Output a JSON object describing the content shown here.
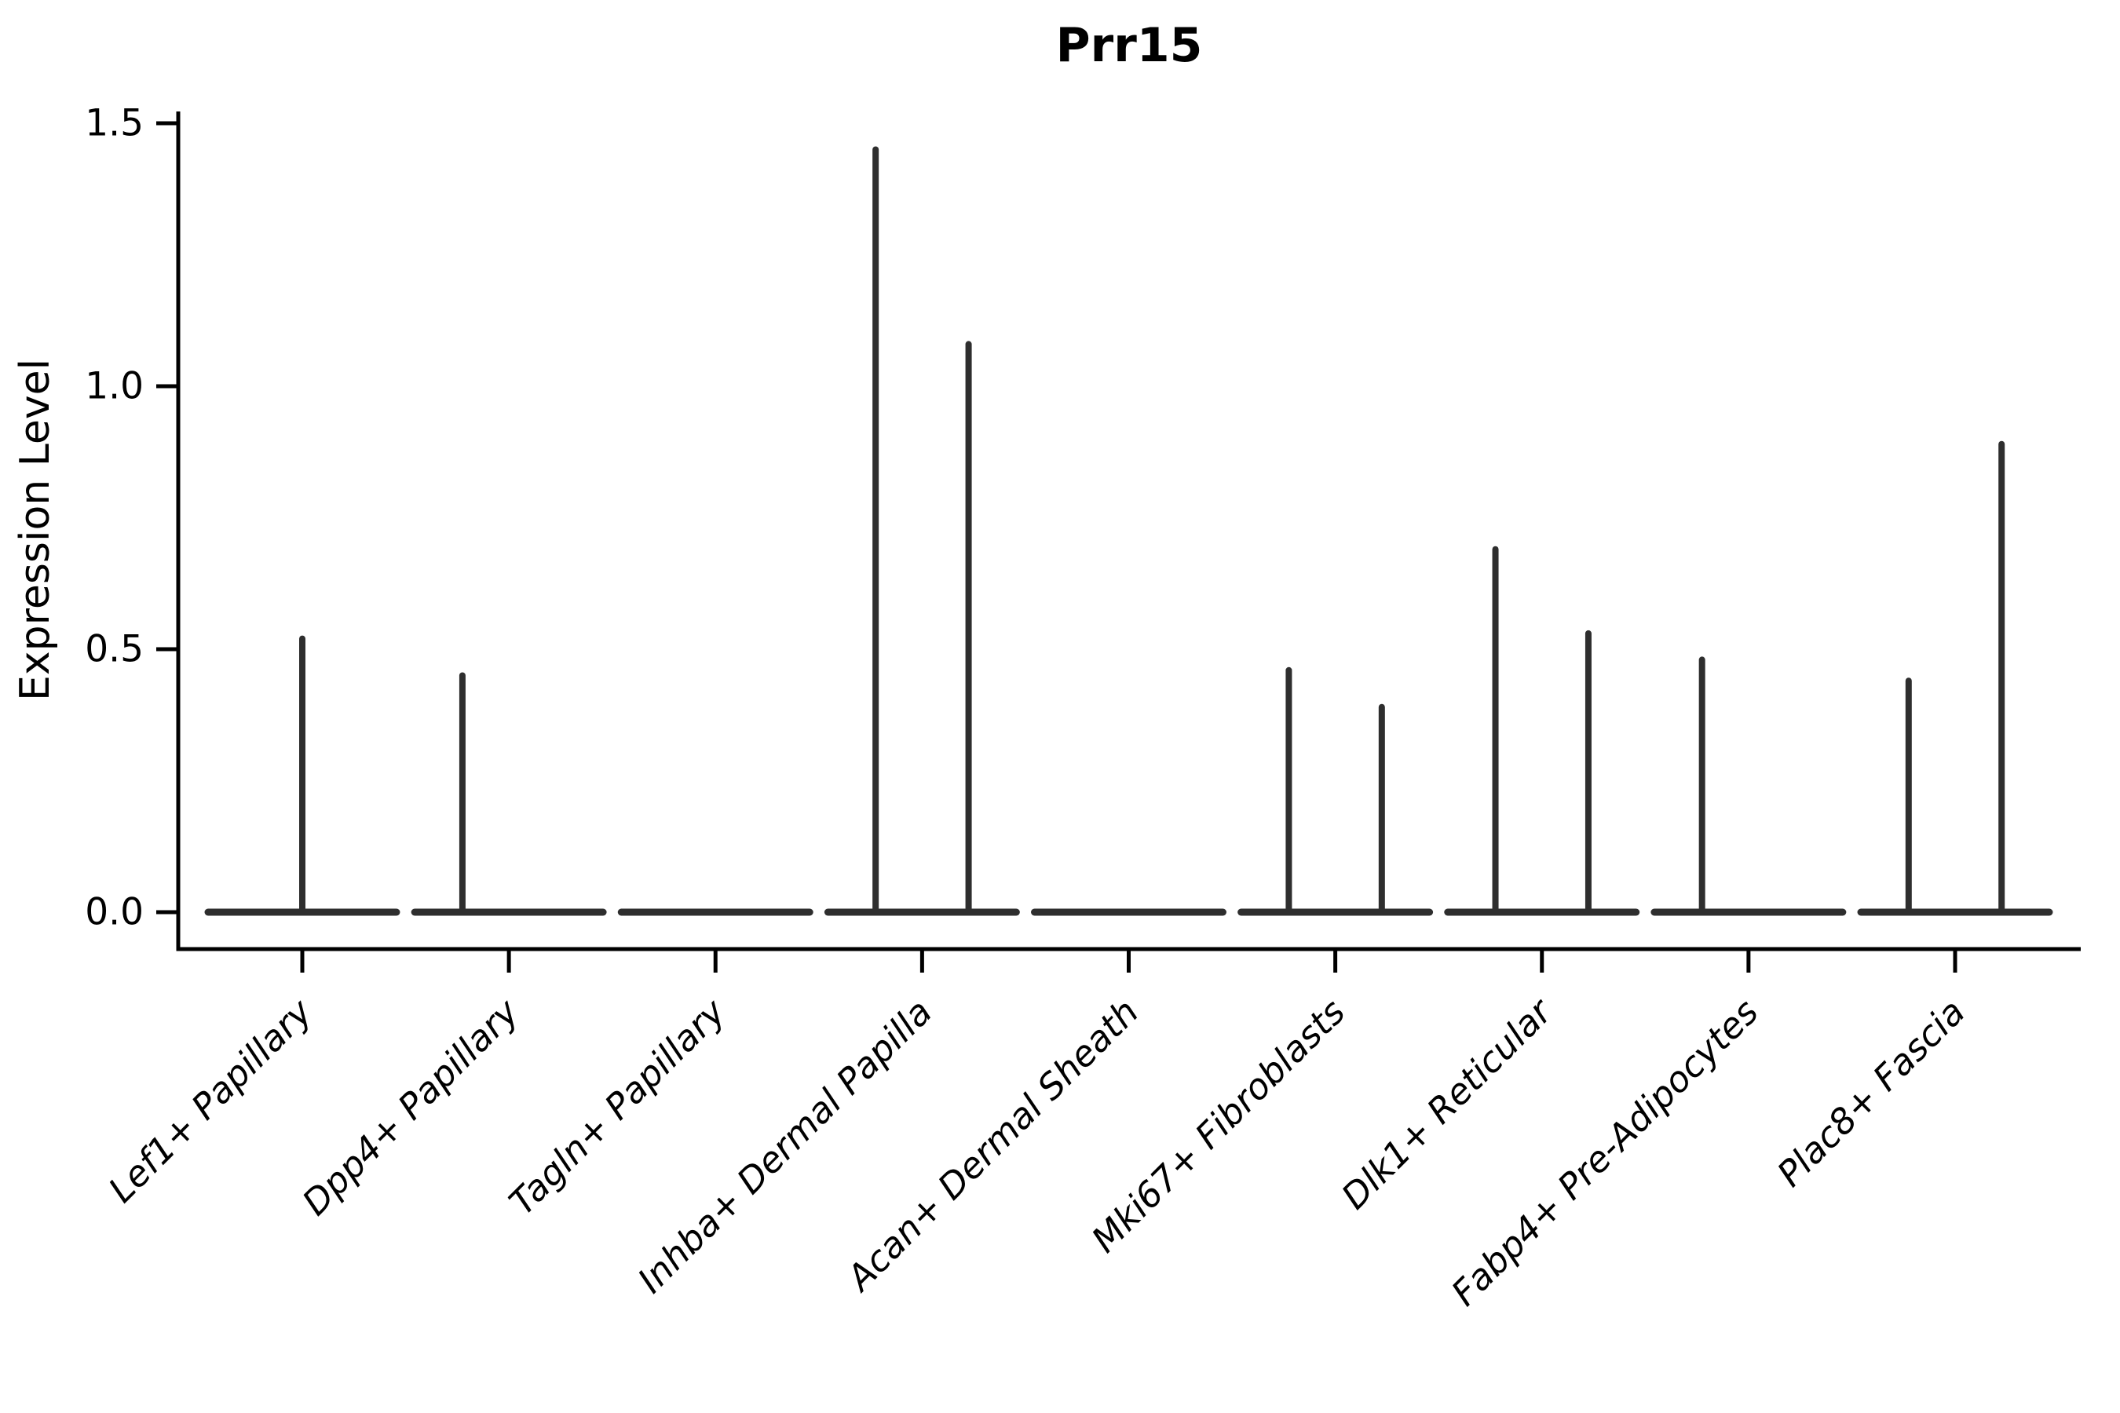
{
  "page": {
    "background": "#ffffff"
  },
  "chart_data": {
    "type": "violin",
    "title": "Prr15",
    "ylabel": "Expression Level",
    "xlabel": "",
    "ylim": [
      0,
      1.5
    ],
    "ytick_labels": [
      "0.0",
      "0.5",
      "1.0",
      "1.5"
    ],
    "ytick_values": [
      0.0,
      0.5,
      1.0,
      1.5
    ],
    "grid": false,
    "legend": null,
    "categories": [
      "Lef1+ Papillary",
      "Dpp4+ Papillary",
      "Tagln+ Papillary",
      "Inhba+ Dermal Papilla",
      "Acan+ Dermal Sheath",
      "Mki67+ Fibroblasts",
      "Dlk1+ Reticular",
      "Fabp4+ Pre-Adipocytes",
      "Plac8+ Fascia"
    ],
    "violins": [
      {
        "label": "Lef1+ Papillary",
        "baseline_value": 0.0,
        "spikes": [
          {
            "pos": "center",
            "max": 0.52
          }
        ]
      },
      {
        "label": "Dpp4+ Papillary",
        "baseline_value": 0.0,
        "spikes": [
          {
            "pos": "left",
            "max": 0.45
          }
        ]
      },
      {
        "label": "Tagln+ Papillary",
        "baseline_value": 0.0,
        "spikes": []
      },
      {
        "label": "Inhba+ Dermal Papilla",
        "baseline_value": 0.0,
        "spikes": [
          {
            "pos": "left",
            "max": 1.45
          },
          {
            "pos": "right",
            "max": 1.08
          }
        ]
      },
      {
        "label": "Acan+ Dermal Sheath",
        "baseline_value": 0.0,
        "spikes": []
      },
      {
        "label": "Mki67+ Fibroblasts",
        "baseline_value": 0.0,
        "spikes": [
          {
            "pos": "left",
            "max": 0.46
          },
          {
            "pos": "right",
            "max": 0.39
          }
        ]
      },
      {
        "label": "Dlk1+ Reticular",
        "baseline_value": 0.0,
        "spikes": [
          {
            "pos": "left",
            "max": 0.69
          },
          {
            "pos": "right",
            "max": 0.53
          }
        ]
      },
      {
        "label": "Fabp4+ Pre-Adipocytes",
        "baseline_value": 0.0,
        "spikes": [
          {
            "pos": "left",
            "max": 0.48
          }
        ]
      },
      {
        "label": "Plac8+ Fascia",
        "baseline_value": 0.0,
        "spikes": [
          {
            "pos": "left",
            "max": 0.44
          },
          {
            "pos": "right",
            "max": 0.89
          }
        ]
      }
    ],
    "style": {
      "line_color": "#2e2e2e",
      "axis_color": "#000000",
      "text_color": "#000000",
      "spike_offset_frac": 0.225,
      "violin_halfwidth_frac": 0.456
    }
  }
}
